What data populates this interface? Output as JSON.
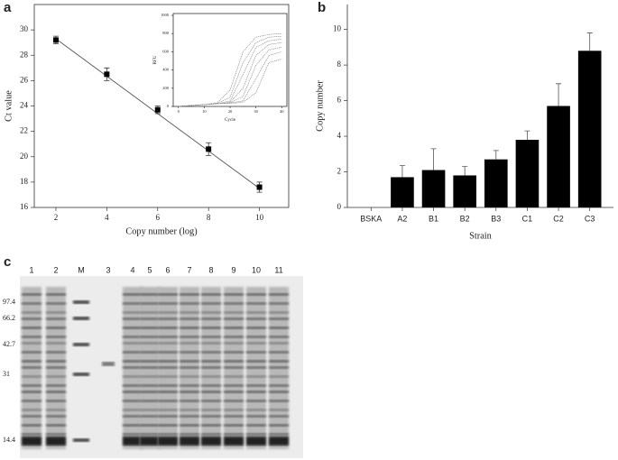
{
  "panel_labels": [
    "a",
    "b",
    "c"
  ],
  "chart_data": [
    {
      "type": "scatter",
      "xlabel": "Copy number (log)",
      "ylabel": "Ct value",
      "x": [
        2,
        4,
        6,
        8,
        10
      ],
      "values": [
        29.2,
        26.5,
        23.7,
        20.6,
        17.6
      ],
      "errors": [
        0.3,
        0.5,
        0.3,
        0.5,
        0.4
      ],
      "fit_line": {
        "x": [
          2,
          10
        ],
        "y": [
          29.3,
          17.5
        ]
      },
      "color": "#000000",
      "xlim": [
        1.15,
        11.15
      ],
      "xticks": [
        2,
        4,
        6,
        8,
        10
      ],
      "ylim": [
        16,
        32
      ],
      "yticks": [
        16,
        18,
        20,
        22,
        24,
        26,
        28,
        30
      ]
    },
    {
      "type": "line",
      "xlabel": "Cycle",
      "ylabel": "RFU",
      "color": "#777777",
      "x": [
        0,
        5,
        10,
        15,
        20,
        25,
        30,
        35,
        40
      ],
      "series": [
        {
          "values": [
            0,
            10,
            20,
            40,
            180,
            600,
            760,
            790,
            800
          ]
        },
        {
          "values": [
            0,
            10,
            20,
            35,
            100,
            480,
            700,
            760,
            770
          ]
        },
        {
          "values": [
            0,
            10,
            20,
            30,
            60,
            350,
            650,
            720,
            740
          ]
        },
        {
          "values": [
            0,
            10,
            20,
            30,
            45,
            200,
            560,
            680,
            700
          ]
        },
        {
          "values": [
            0,
            10,
            20,
            30,
            40,
            110,
            450,
            620,
            650
          ]
        },
        {
          "values": [
            0,
            10,
            20,
            30,
            38,
            60,
            300,
            560,
            600
          ]
        },
        {
          "values": [
            0,
            10,
            20,
            30,
            35,
            45,
            150,
            480,
            520
          ]
        }
      ],
      "xlim": [
        -2,
        42
      ],
      "xticks": [
        0,
        10,
        20,
        30,
        40
      ],
      "ylim": [
        0,
        1020
      ],
      "yticks": [
        0,
        200,
        400,
        600,
        800,
        1000
      ]
    },
    {
      "type": "bar",
      "xlabel": "Strain",
      "ylabel": "Copy number",
      "color": "#000000",
      "categories": [
        "BSKA",
        "A2",
        "B1",
        "B2",
        "B3",
        "C1",
        "C2",
        "C3"
      ],
      "values": [
        0,
        1.7,
        2.1,
        1.8,
        2.7,
        3.8,
        5.7,
        8.8
      ],
      "errors": [
        null,
        0.65,
        1.2,
        0.5,
        0.5,
        0.5,
        1.25,
        1.0
      ],
      "ylim": [
        0,
        11.4
      ],
      "yticks": [
        0,
        2,
        4,
        6,
        8,
        10
      ]
    }
  ],
  "gel": {
    "lanes": [
      "1",
      "2",
      "M",
      "3",
      "4",
      "5",
      "6",
      "7",
      "8",
      "9",
      "10",
      "11"
    ],
    "markers": [
      "97.4",
      "66.2",
      "42.7",
      "31",
      "14.4"
    ]
  }
}
